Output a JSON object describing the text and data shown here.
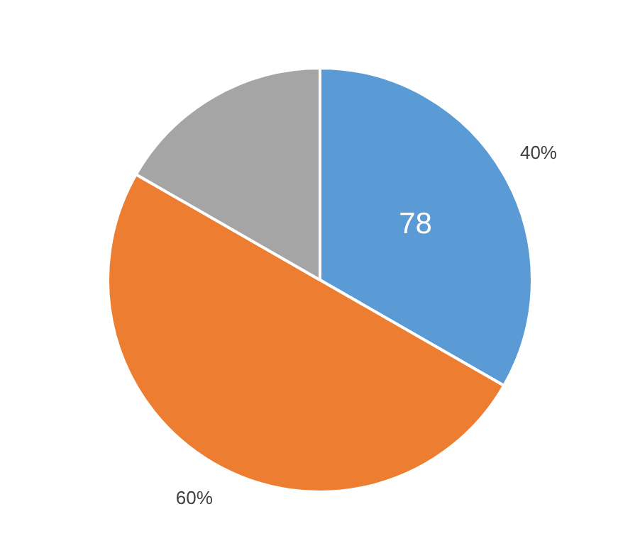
{
  "chart_data": {
    "type": "pie",
    "categories": [
      null,
      null,
      null
    ],
    "values": [
      33.3,
      50,
      16.7
    ],
    "colors": [
      "#5b9bd5",
      "#ed7d31",
      "#a5a5a5"
    ],
    "annotations": [
      "78",
      "40%",
      "60%"
    ],
    "legend": false
  }
}
